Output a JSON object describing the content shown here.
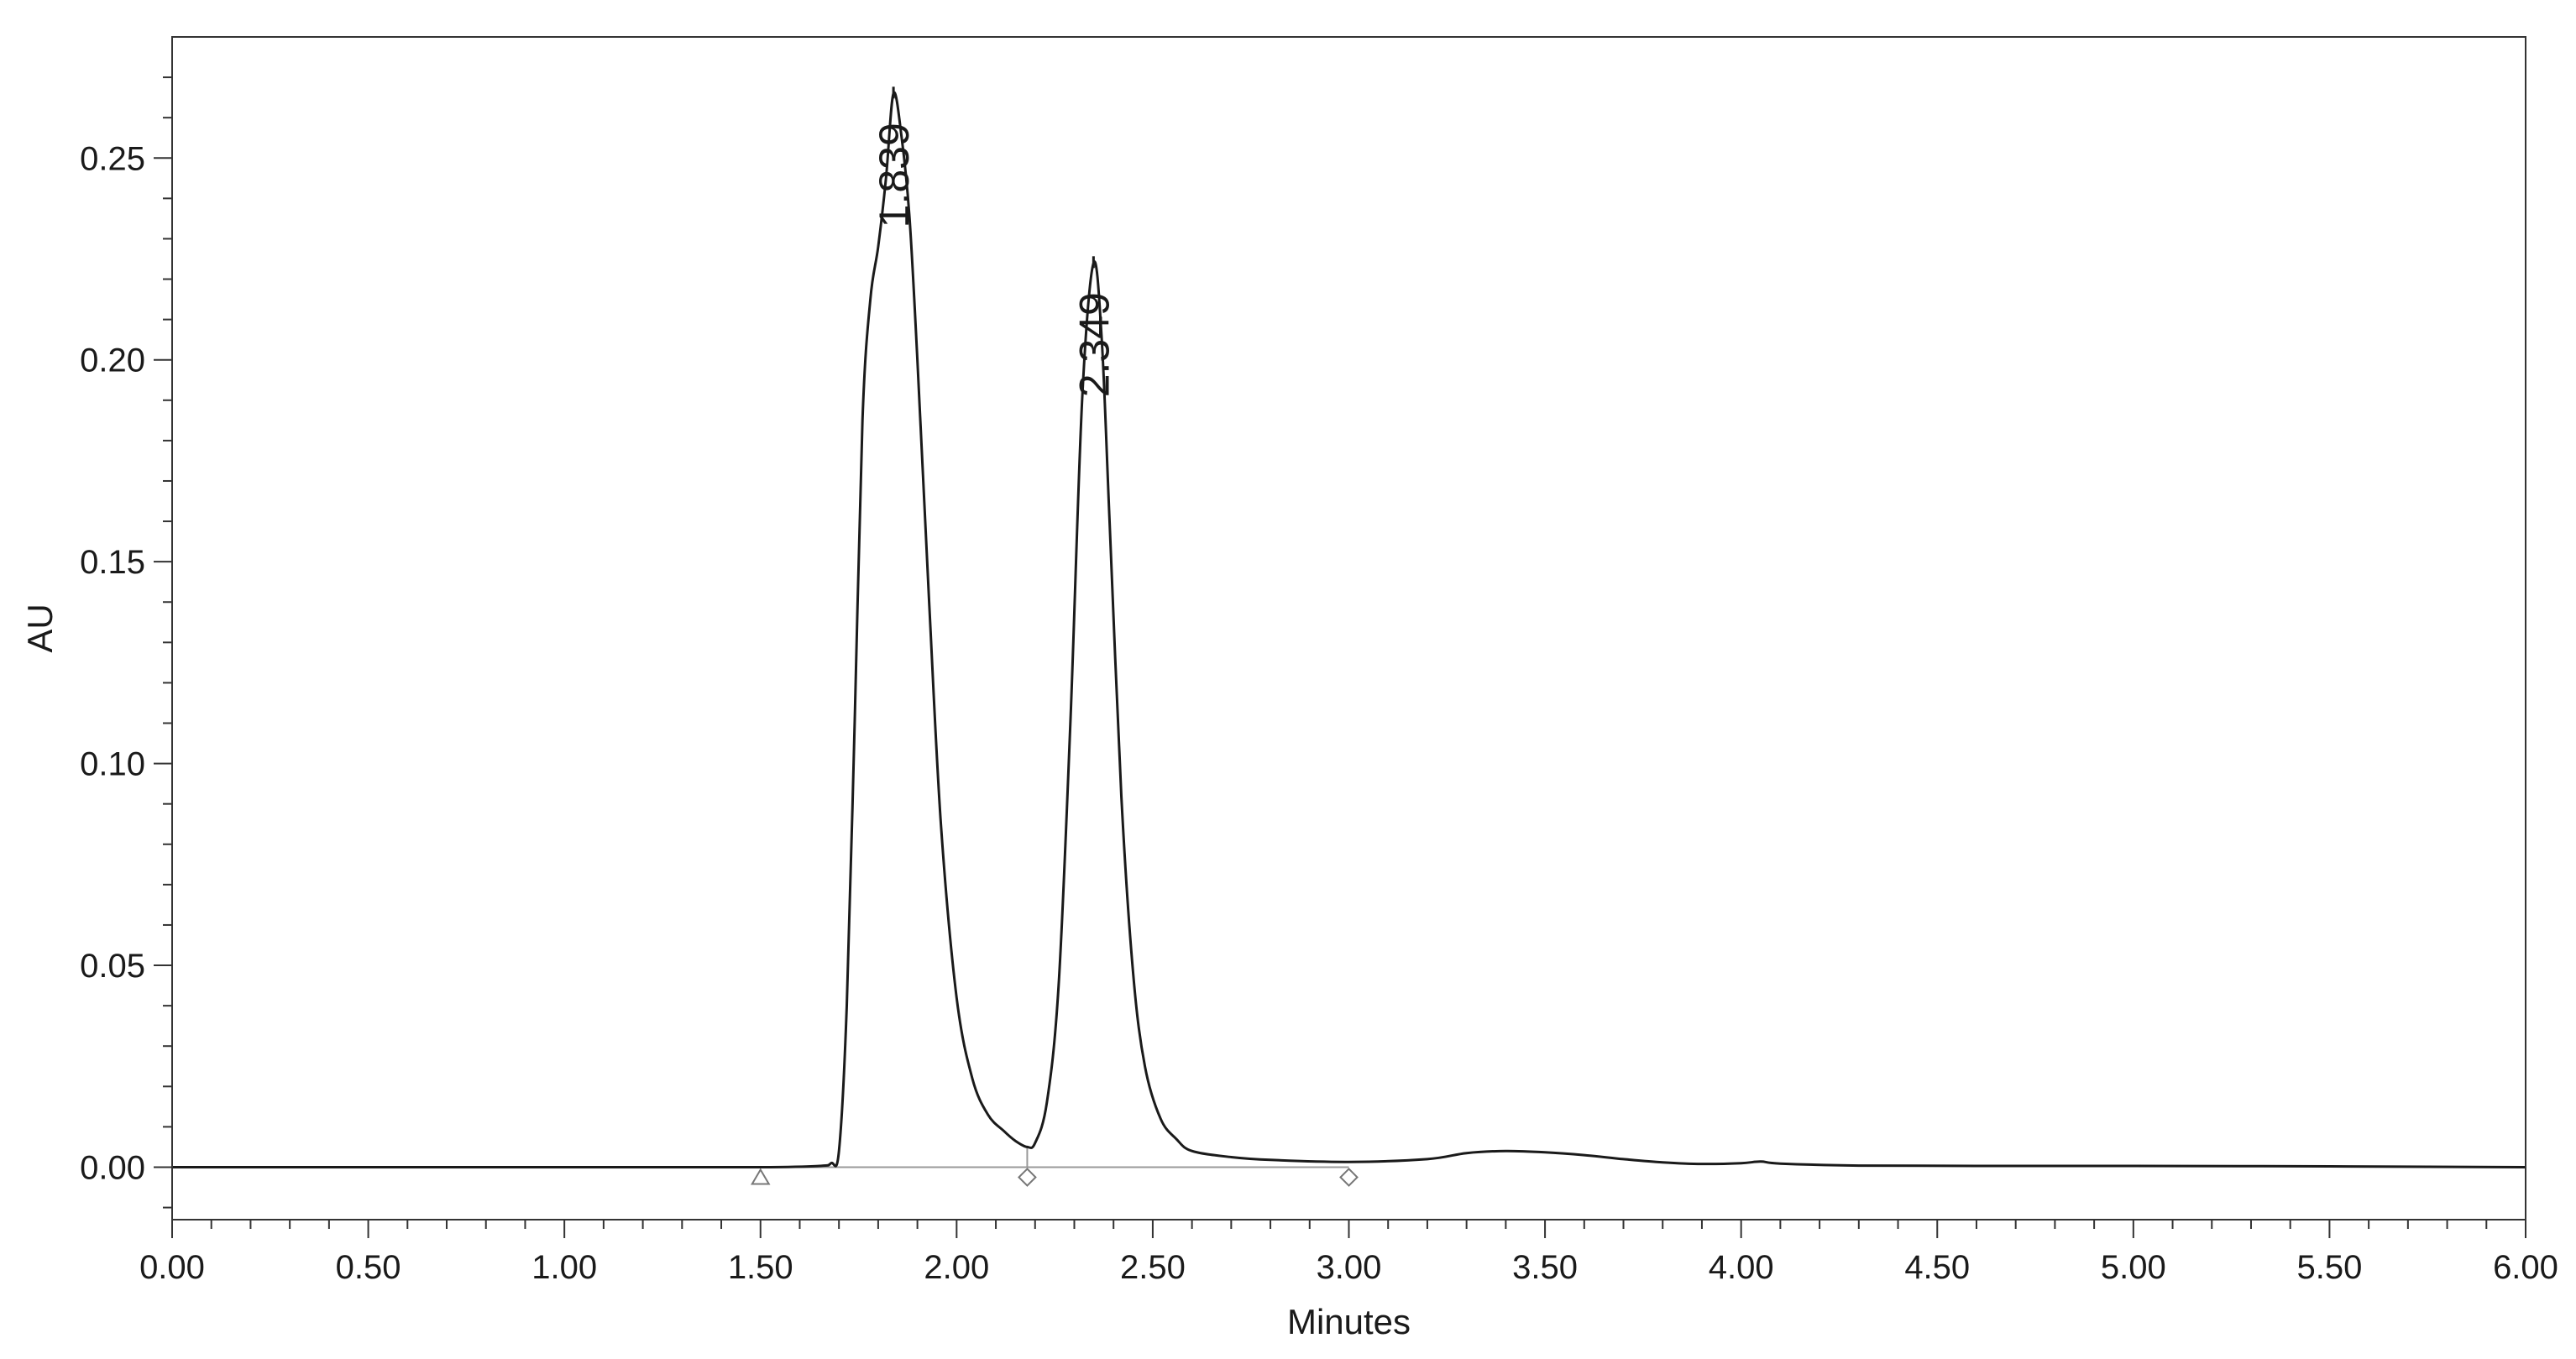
{
  "chart_data": {
    "type": "line",
    "xlabel": "Minutes",
    "ylabel": "AU",
    "xlim": [
      0.0,
      6.0
    ],
    "ylim": [
      -0.013,
      0.28
    ],
    "grid": false,
    "x_ticks": [
      "0.00",
      "0.50",
      "1.00",
      "1.50",
      "2.00",
      "2.50",
      "3.00",
      "3.50",
      "4.00",
      "4.50",
      "5.00",
      "5.50",
      "6.00"
    ],
    "y_ticks": [
      "0.00",
      "0.05",
      "0.10",
      "0.15",
      "0.20",
      "0.25"
    ],
    "series": [
      {
        "x": [
          0.0,
          0.5,
          1.0,
          1.5,
          1.65,
          1.68,
          1.7,
          1.72,
          1.74,
          1.76,
          1.78,
          1.8,
          1.82,
          1.839,
          1.86,
          1.88,
          1.9,
          1.93,
          1.96,
          2.0,
          2.04,
          2.08,
          2.12,
          2.15,
          2.18,
          2.2,
          2.23,
          2.26,
          2.29,
          2.32,
          2.349,
          2.37,
          2.39,
          2.42,
          2.45,
          2.48,
          2.52,
          2.56,
          2.6,
          2.7,
          2.8,
          3.0,
          3.2,
          3.3,
          3.4,
          3.5,
          3.6,
          3.7,
          3.8,
          3.9,
          4.0,
          4.05,
          4.1,
          4.3,
          4.6,
          5.0,
          5.5,
          6.0
        ],
        "y": [
          0.0,
          0.0,
          0.0,
          0.0,
          0.0003,
          0.001,
          0.004,
          0.04,
          0.11,
          0.185,
          0.215,
          0.228,
          0.245,
          0.266,
          0.255,
          0.235,
          0.2,
          0.14,
          0.085,
          0.042,
          0.022,
          0.013,
          0.009,
          0.0065,
          0.005,
          0.006,
          0.016,
          0.045,
          0.11,
          0.19,
          0.224,
          0.205,
          0.16,
          0.092,
          0.048,
          0.025,
          0.012,
          0.007,
          0.004,
          0.0025,
          0.0018,
          0.0013,
          0.002,
          0.0035,
          0.004,
          0.0037,
          0.003,
          0.002,
          0.0012,
          0.0008,
          0.001,
          0.0014,
          0.0009,
          0.0004,
          0.0003,
          0.0003,
          0.0002,
          0.0
        ]
      }
    ],
    "peak_labels": [
      {
        "text": "1.839",
        "x": 1.839,
        "y": 0.266
      },
      {
        "text": "2.349",
        "x": 2.349,
        "y": 0.224
      }
    ],
    "baseline_markers": [
      {
        "x": 1.5,
        "shape": "triangle"
      },
      {
        "x": 2.18,
        "shape": "diamond"
      },
      {
        "x": 3.0,
        "shape": "diamond"
      }
    ],
    "colors": {
      "trace": "#1a1a1a",
      "axis": "#333333",
      "baseline": "#999999",
      "marker": "#777777"
    }
  }
}
